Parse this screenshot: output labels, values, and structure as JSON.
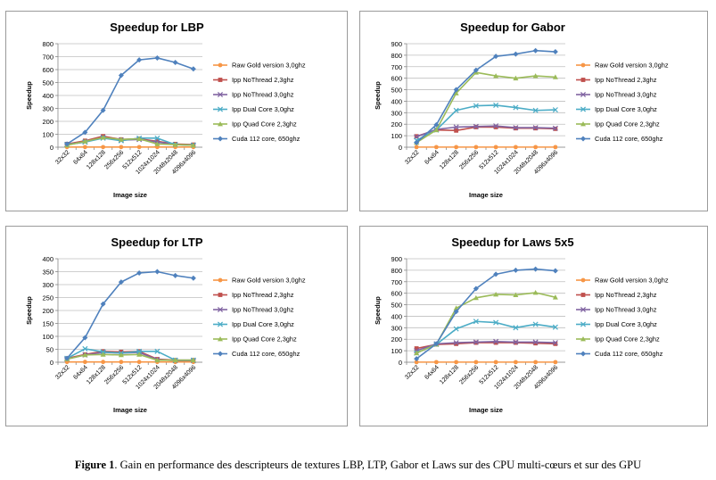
{
  "figure": {
    "caption_label": "Figure 1",
    "caption_text": ". Gain en performance des descripteurs de textures LBP, LTP, Gabor et Laws sur des CPU multi-cœurs et sur des GPU"
  },
  "colors": {
    "Raw Gold version 3,0ghz": "#f79646",
    "Ipp NoThread 2,3ghz": "#c0504d",
    "Ipp NoThread 3,0ghz": "#8064a2",
    "Ipp Dual Core 3,0ghz": "#4bacc6",
    "Ipp Quad Core 2,3ghz": "#9bbb59",
    "Cuda 112 core, 650ghz": "#4f81bd"
  },
  "chart_data": [
    {
      "type": "line",
      "title": "Speedup for LBP",
      "xlabel": "Image size",
      "ylabel": "Speedup",
      "categories": [
        "32x32",
        "64x64",
        "128x128",
        "256x256",
        "512x512",
        "1024x1024",
        "2048x2048",
        "4096x4096"
      ],
      "ylim": [
        0,
        800
      ],
      "yticks": [
        0,
        100,
        200,
        300,
        400,
        500,
        600,
        700,
        800
      ],
      "grid": true,
      "legend": "right",
      "series": [
        {
          "name": "Raw Gold version 3,0ghz",
          "marker": "circle",
          "values": [
            1,
            1,
            1,
            1,
            1,
            1,
            1,
            1
          ]
        },
        {
          "name": "Ipp NoThread 2,3ghz",
          "marker": "square",
          "values": [
            25,
            50,
            85,
            60,
            65,
            45,
            25,
            20
          ]
        },
        {
          "name": "Ipp NoThread 3,0ghz",
          "marker": "x",
          "values": [
            20,
            40,
            75,
            55,
            60,
            40,
            20,
            15
          ]
        },
        {
          "name": "Ipp Dual Core 3,0ghz",
          "marker": "x",
          "values": [
            20,
            40,
            70,
            50,
            70,
            70,
            20,
            15
          ]
        },
        {
          "name": "Ipp Quad Core 2,3ghz",
          "marker": "triangle",
          "values": [
            15,
            45,
            75,
            60,
            65,
            25,
            20,
            15
          ]
        },
        {
          "name": "Cuda 112 core, 650ghz",
          "marker": "diamond",
          "values": [
            25,
            115,
            285,
            555,
            675,
            690,
            655,
            605
          ]
        }
      ]
    },
    {
      "type": "line",
      "title": "Speedup for Gabor",
      "xlabel": "Image size",
      "ylabel": "Speedup",
      "categories": [
        "32x32",
        "64x64",
        "128x128",
        "256x256",
        "512x512",
        "1024x1024",
        "2048x2048",
        "4096x4096"
      ],
      "ylim": [
        0,
        900
      ],
      "yticks": [
        0,
        100,
        200,
        300,
        400,
        500,
        600,
        700,
        800,
        900
      ],
      "grid": true,
      "legend": "right",
      "series": [
        {
          "name": "Raw Gold version 3,0ghz",
          "marker": "circle",
          "values": [
            1,
            1,
            1,
            1,
            1,
            1,
            1,
            1
          ]
        },
        {
          "name": "Ipp NoThread 2,3ghz",
          "marker": "square",
          "values": [
            95,
            150,
            145,
            175,
            175,
            165,
            165,
            160
          ]
        },
        {
          "name": "Ipp NoThread 3,0ghz",
          "marker": "x",
          "values": [
            90,
            155,
            175,
            180,
            185,
            170,
            170,
            165
          ]
        },
        {
          "name": "Ipp Dual Core 3,0ghz",
          "marker": "x",
          "values": [
            60,
            150,
            320,
            360,
            365,
            345,
            320,
            325
          ]
        },
        {
          "name": "Ipp Quad Core 2,3ghz",
          "marker": "triangle",
          "values": [
            40,
            150,
            470,
            650,
            620,
            600,
            620,
            610
          ]
        },
        {
          "name": "Cuda 112 core, 650ghz",
          "marker": "diamond",
          "values": [
            40,
            195,
            500,
            670,
            790,
            810,
            840,
            830
          ]
        }
      ]
    },
    {
      "type": "line",
      "title": "Speedup for LTP",
      "xlabel": "Image size",
      "ylabel": "Speedup",
      "categories": [
        "32x32",
        "64x64",
        "128x128",
        "256x256",
        "512x512",
        "1024x1024",
        "2048x2048",
        "4096x4096"
      ],
      "ylim": [
        0,
        400
      ],
      "yticks": [
        0,
        50,
        100,
        150,
        200,
        250,
        300,
        350,
        400
      ],
      "grid": true,
      "legend": "right",
      "series": [
        {
          "name": "Raw Gold version 3,0ghz",
          "marker": "circle",
          "values": [
            1,
            1,
            1,
            1,
            1,
            1,
            1,
            1
          ]
        },
        {
          "name": "Ipp NoThread 2,3ghz",
          "marker": "square",
          "values": [
            15,
            30,
            42,
            40,
            42,
            12,
            8,
            8
          ]
        },
        {
          "name": "Ipp NoThread 3,0ghz",
          "marker": "x",
          "values": [
            12,
            28,
            38,
            35,
            38,
            10,
            6,
            6
          ]
        },
        {
          "name": "Ipp Dual Core 3,0ghz",
          "marker": "x",
          "values": [
            15,
            52,
            40,
            35,
            42,
            42,
            8,
            8
          ]
        },
        {
          "name": "Ipp Quad Core 2,3ghz",
          "marker": "triangle",
          "values": [
            12,
            28,
            30,
            28,
            30,
            8,
            8,
            8
          ]
        },
        {
          "name": "Cuda 112 core, 650ghz",
          "marker": "diamond",
          "values": [
            15,
            95,
            225,
            310,
            345,
            350,
            335,
            325
          ]
        }
      ]
    },
    {
      "type": "line",
      "title": "Speedup for Laws 5x5",
      "xlabel": "Image size",
      "ylabel": "Speedup",
      "categories": [
        "32x32",
        "64x64",
        "128x128",
        "256x256",
        "512x512",
        "1024x1024",
        "2048x2048",
        "4096x4096"
      ],
      "ylim": [
        0,
        900
      ],
      "yticks": [
        0,
        100,
        200,
        300,
        400,
        500,
        600,
        700,
        800,
        900
      ],
      "grid": true,
      "legend": "right",
      "series": [
        {
          "name": "Raw Gold version 3,0ghz",
          "marker": "circle",
          "values": [
            1,
            1,
            1,
            1,
            1,
            1,
            1,
            1
          ]
        },
        {
          "name": "Ipp NoThread 2,3ghz",
          "marker": "square",
          "values": [
            120,
            155,
            160,
            170,
            170,
            170,
            165,
            160
          ]
        },
        {
          "name": "Ipp NoThread 3,0ghz",
          "marker": "x",
          "values": [
            100,
            160,
            170,
            175,
            180,
            175,
            175,
            170
          ]
        },
        {
          "name": "Ipp Dual Core 3,0ghz",
          "marker": "x",
          "values": [
            80,
            155,
            290,
            355,
            345,
            300,
            330,
            305
          ]
        },
        {
          "name": "Ipp Quad Core 2,3ghz",
          "marker": "triangle",
          "values": [
            80,
            155,
            470,
            560,
            590,
            585,
            605,
            565
          ]
        },
        {
          "name": "Cuda 112 core, 650ghz",
          "marker": "diamond",
          "values": [
            30,
            160,
            440,
            640,
            765,
            800,
            810,
            795
          ]
        }
      ]
    }
  ]
}
